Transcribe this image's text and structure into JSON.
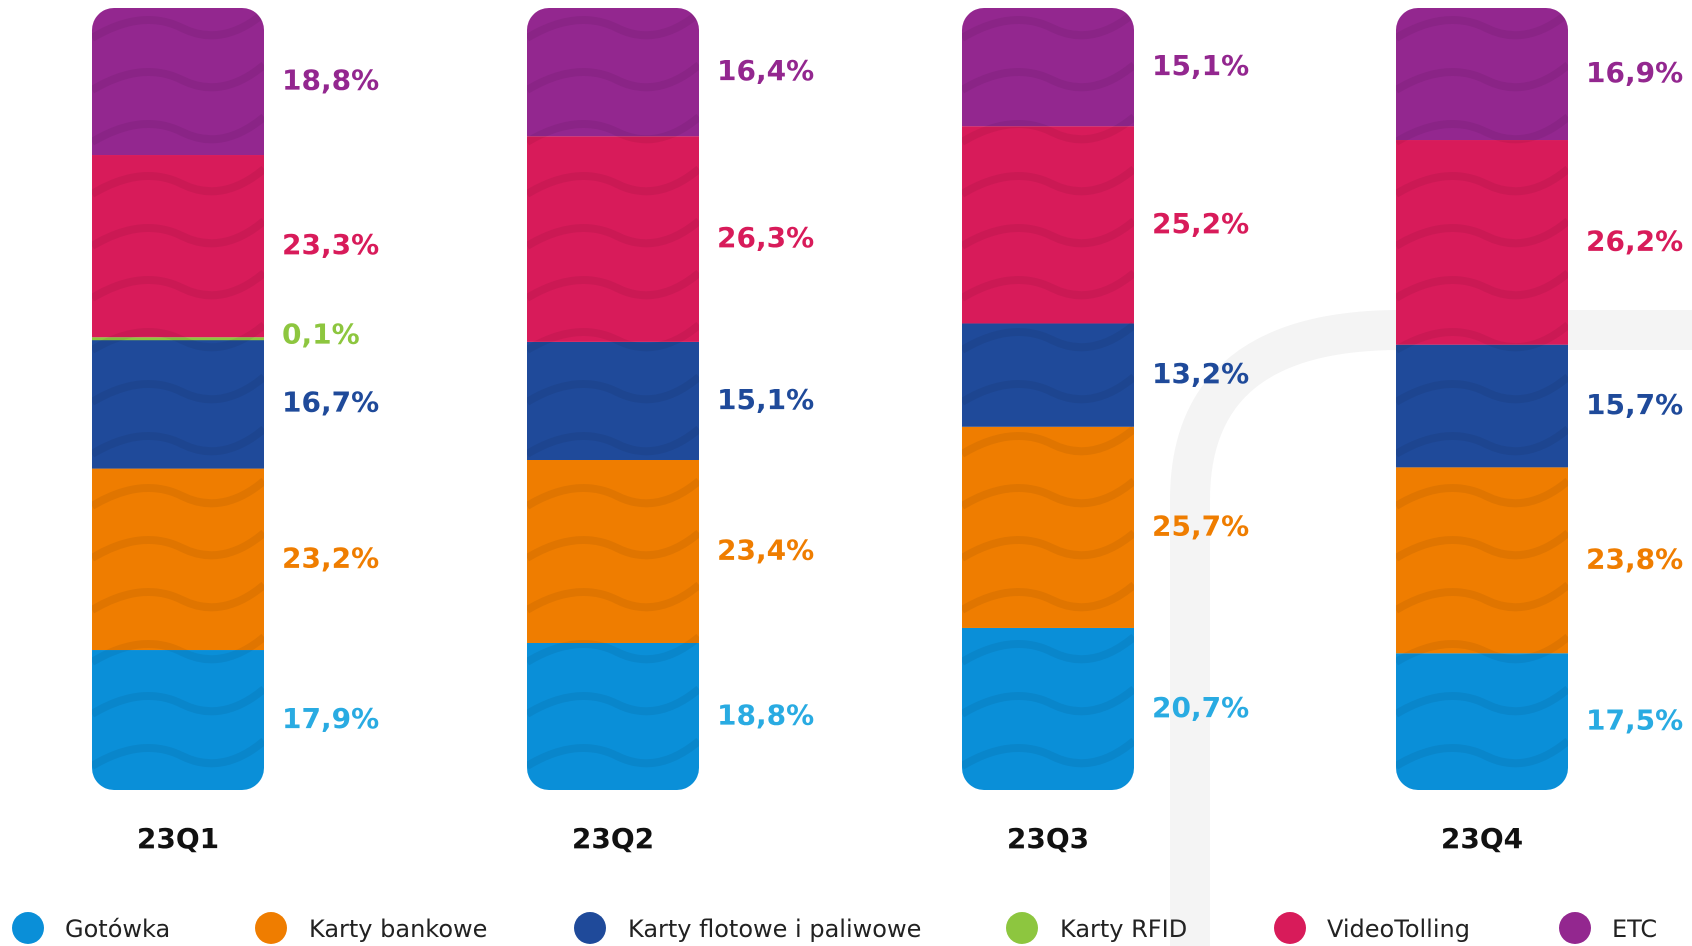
{
  "chart_data": {
    "type": "stacked_bar",
    "categories": [
      "23Q1",
      "23Q2",
      "23Q3",
      "23Q4"
    ],
    "series": [
      {
        "name": "Gotówka",
        "color": "#0a8fd8",
        "label_color": "#29abe2",
        "values": [
          17.9,
          18.8,
          20.7,
          17.5
        ],
        "value_labels": [
          "17,9%",
          "18,8%",
          "20,7%",
          "17,5%"
        ]
      },
      {
        "name": "Karty bankowe",
        "color": "#ef7d00",
        "label_color": "#ef7d00",
        "values": [
          23.2,
          23.4,
          25.7,
          23.8
        ],
        "value_labels": [
          "23,2%",
          "23,4%",
          "25,7%",
          "23,8%"
        ]
      },
      {
        "name": "Karty flotowe i paliwowe",
        "color": "#1f4a9a",
        "label_color": "#1f4a9a",
        "values": [
          16.7,
          15.1,
          13.2,
          15.7
        ],
        "value_labels": [
          "16,7%",
          "15,1%",
          "13,2%",
          "15,7%"
        ]
      },
      {
        "name": "Karty RFID",
        "color": "#8dc63f",
        "label_color": "#8dc63f",
        "values": [
          0.1,
          null,
          null,
          null
        ],
        "value_labels": [
          "0,1%",
          null,
          null,
          null
        ]
      },
      {
        "name": "VideoTolling",
        "color": "#d81b5a",
        "label_color": "#d81b5a",
        "values": [
          23.3,
          26.3,
          25.2,
          26.2
        ],
        "value_labels": [
          "23,3%",
          "26,3%",
          "25,2%",
          "26,2%"
        ]
      },
      {
        "name": "ETC",
        "color": "#93278f",
        "label_color": "#93278f",
        "values": [
          18.8,
          16.4,
          15.1,
          16.9
        ],
        "value_labels": [
          "18,8%",
          "16,4%",
          "15,1%",
          "16,9%"
        ]
      }
    ]
  }
}
